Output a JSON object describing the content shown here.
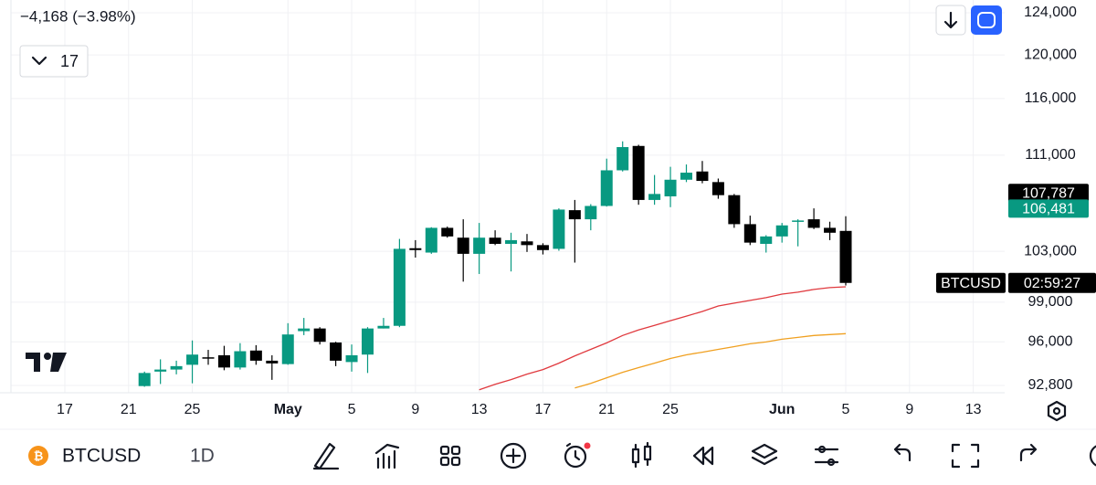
{
  "header": {
    "change": "−4,168 (−3.98%)",
    "dropdown": "17"
  },
  "chart_data": {
    "type": "candlestick",
    "categories": [
      "17",
      null,
      null,
      null,
      "21",
      null,
      null,
      null,
      "25",
      null,
      null,
      null,
      null,
      null,
      "May",
      null,
      null,
      null,
      "5",
      null,
      null,
      null,
      "9",
      null,
      null,
      null,
      "13",
      null,
      null,
      null,
      "17",
      null,
      null,
      null,
      "21",
      null,
      null,
      null,
      "25",
      null,
      null,
      null,
      null,
      null,
      null,
      "Jun",
      null,
      null,
      null,
      "5",
      null,
      null,
      null,
      "9",
      null,
      null,
      null,
      "13"
    ],
    "open": [
      null,
      null,
      null,
      null,
      null,
      92750,
      93800,
      93950,
      94300,
      94850,
      95000,
      94100,
      95350,
      94600,
      94350,
      96800,
      97000,
      95950,
      94500,
      95050,
      97000,
      97200,
      103250,
      102900,
      104900,
      104100,
      102800,
      104100,
      103600,
      103800,
      103500,
      103200,
      106350,
      105600,
      106700,
      109700,
      111800,
      107200,
      107500,
      108900,
      109600,
      108700,
      107600,
      105200,
      103600,
      104200,
      105400,
      105600,
      104900,
      104650,
      null,
      null,
      null,
      null,
      null,
      null,
      null,
      null
    ],
    "high": [
      null,
      null,
      null,
      null,
      null,
      93800,
      94700,
      94600,
      96100,
      95400,
      95700,
      95900,
      95750,
      95000,
      97400,
      97800,
      97100,
      96000,
      95800,
      97100,
      97800,
      104000,
      103900,
      104950,
      105000,
      105600,
      105300,
      104700,
      104500,
      104400,
      103650,
      106500,
      107200,
      106850,
      110700,
      112200,
      111900,
      109300,
      110000,
      110200,
      110500,
      109000,
      107700,
      105900,
      104300,
      105300,
      105600,
      106500,
      105400,
      105850,
      null,
      null,
      null,
      null,
      null,
      null,
      null,
      null
    ],
    "low": [
      null,
      null,
      null,
      null,
      null,
      92700,
      92900,
      93600,
      92950,
      94300,
      93900,
      93950,
      94300,
      93200,
      94300,
      96500,
      95800,
      94200,
      93800,
      93700,
      97000,
      97100,
      102500,
      102800,
      104100,
      100600,
      101200,
      103500,
      101400,
      102950,
      102750,
      103050,
      102100,
      104700,
      106650,
      109600,
      106800,
      106800,
      106600,
      108700,
      108600,
      107300,
      104900,
      103500,
      102900,
      103700,
      103400,
      104800,
      103900,
      100300,
      null,
      null,
      null,
      null,
      null,
      null,
      null,
      null
    ],
    "close": [
      null,
      null,
      null,
      null,
      null,
      93700,
      93950,
      94200,
      95050,
      94800,
      94100,
      95300,
      94600,
      94400,
      96550,
      97000,
      96000,
      94600,
      95000,
      97000,
      97200,
      103200,
      103100,
      104900,
      104200,
      102800,
      104100,
      103600,
      103900,
      103500,
      103100,
      106400,
      105600,
      106700,
      109700,
      111700,
      107200,
      107700,
      108900,
      109500,
      108800,
      107600,
      105200,
      103700,
      104200,
      105100,
      105500,
      104900,
      104500,
      100500,
      null,
      null,
      null,
      null,
      null,
      null,
      null,
      null
    ],
    "up_color": "#089981",
    "down_color": "#000000",
    "overlays": [
      {
        "color": "#e0393e",
        "values": [
          null,
          null,
          null,
          null,
          null,
          null,
          null,
          null,
          null,
          null,
          null,
          null,
          null,
          null,
          null,
          null,
          null,
          null,
          null,
          null,
          null,
          null,
          null,
          null,
          null,
          null,
          92480,
          92880,
          93220,
          93620,
          93950,
          94420,
          94960,
          95440,
          95920,
          96470,
          96890,
          97240,
          97590,
          97940,
          98290,
          98710,
          98930,
          99140,
          99350,
          99630,
          99780,
          99990,
          100130,
          100200,
          null,
          null,
          null,
          null,
          null,
          null,
          null,
          null
        ]
      },
      {
        "color": "#f0a020",
        "values": [
          null,
          null,
          null,
          null,
          null,
          null,
          null,
          null,
          null,
          null,
          null,
          null,
          null,
          null,
          null,
          null,
          null,
          null,
          null,
          null,
          null,
          null,
          null,
          null,
          null,
          null,
          null,
          null,
          null,
          null,
          null,
          null,
          92610,
          92950,
          93350,
          93750,
          94090,
          94420,
          94760,
          95030,
          95230,
          95440,
          95640,
          95850,
          95990,
          96190,
          96330,
          96470,
          96540,
          96610,
          null,
          null,
          null,
          null,
          null,
          null,
          null,
          null
        ]
      }
    ],
    "ylim": [
      92270,
      125240
    ],
    "log_scale": true,
    "grid": true,
    "yticks": [
      {
        "value": 124000,
        "label": "124,000"
      },
      {
        "value": 120000,
        "label": "120,000"
      },
      {
        "value": 116000,
        "label": "116,000"
      },
      {
        "value": 111000,
        "label": "111,000"
      },
      {
        "value": 103000,
        "label": "103,000"
      },
      {
        "value": 99000,
        "label": "99,000"
      },
      {
        "value": 96000,
        "label": "96,000"
      },
      {
        "value": 92800,
        "label": "92,800"
      }
    ],
    "price_markers": [
      {
        "value": 107787,
        "label": "107,787",
        "color": "#000000"
      },
      {
        "value": 106481,
        "label": "106,481",
        "color": "#089981"
      }
    ],
    "symbol_tag": "BTCUSD",
    "countdown": "02:59:27"
  },
  "toolbar": {
    "symbol": "BTCUSD",
    "interval": "1D"
  }
}
